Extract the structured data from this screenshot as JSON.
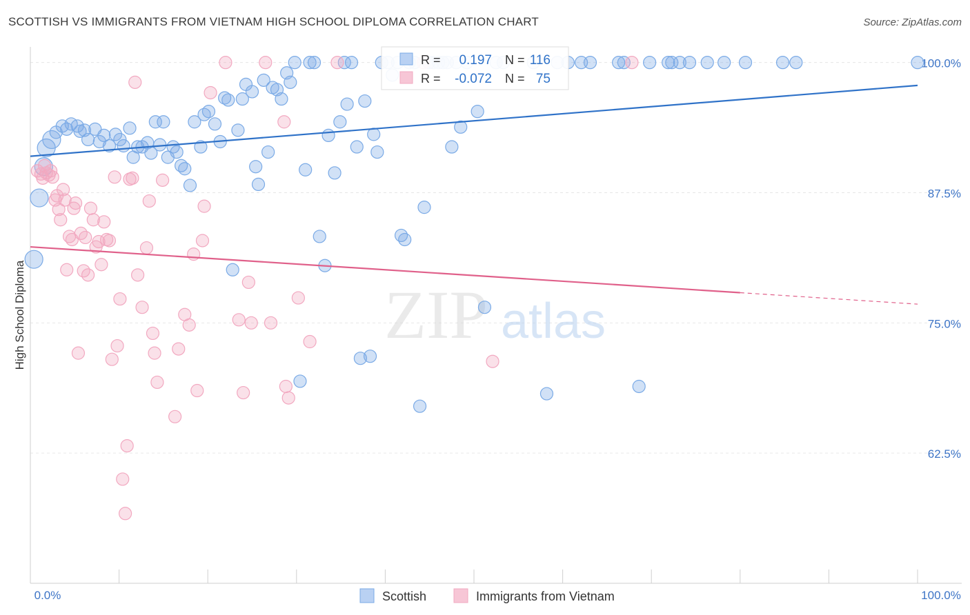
{
  "title": "SCOTTISH VS IMMIGRANTS FROM VIETNAM HIGH SCHOOL DIPLOMA CORRELATION CHART",
  "source": "Source: ZipAtlas.com",
  "watermark": {
    "zip": "ZIP",
    "atlas": "atlas"
  },
  "chart_data": {
    "type": "scatter",
    "xlabel": "",
    "ylabel": "High School Diploma",
    "xlim": [
      0,
      100
    ],
    "ylim": [
      50,
      101.5
    ],
    "x_ticks": [
      {
        "value": 0,
        "label": "0.0%"
      },
      {
        "value": 100,
        "label": "100.0%"
      }
    ],
    "y_ticks": [
      {
        "value": 100,
        "label": "100.0%"
      },
      {
        "value": 87.5,
        "label": "87.5%"
      },
      {
        "value": 75,
        "label": "75.0%"
      },
      {
        "value": 62.5,
        "label": "62.5%"
      }
    ],
    "grid": true,
    "legend_position": "bottom-center",
    "stats": [
      {
        "r_label": "R =",
        "r_value": "0.197",
        "n_label": "N =",
        "n_value": "116"
      },
      {
        "r_label": "R =",
        "r_value": "-0.072",
        "n_label": "N =",
        "n_value": "75"
      }
    ],
    "series": [
      {
        "name": "Scottish",
        "color": "#7aaae6",
        "line_color": "#2f72c8",
        "trend": {
          "x0": 0,
          "y0": 91.0,
          "x1": 100,
          "y1": 97.8,
          "solid_until": 100
        },
        "points": [
          [
            0.4,
            81.1
          ],
          [
            1.0,
            87.0
          ],
          [
            1.5,
            90.0
          ],
          [
            1.8,
            91.8
          ],
          [
            2.4,
            92.6
          ],
          [
            2.9,
            93.3
          ],
          [
            3.6,
            93.9
          ],
          [
            4.1,
            93.6
          ],
          [
            4.6,
            94.1
          ],
          [
            5.3,
            93.9
          ],
          [
            5.6,
            93.4
          ],
          [
            6.1,
            93.5
          ],
          [
            6.5,
            92.6
          ],
          [
            7.3,
            93.6
          ],
          [
            7.8,
            92.4
          ],
          [
            8.3,
            93.0
          ],
          [
            8.9,
            92.0
          ],
          [
            9.6,
            93.1
          ],
          [
            10.1,
            92.6
          ],
          [
            10.5,
            92.0
          ],
          [
            11.2,
            93.7
          ],
          [
            11.6,
            90.9
          ],
          [
            12.1,
            91.9
          ],
          [
            12.6,
            91.9
          ],
          [
            13.2,
            92.3
          ],
          [
            13.6,
            91.3
          ],
          [
            14.1,
            94.3
          ],
          [
            14.6,
            92.1
          ],
          [
            15.0,
            94.3
          ],
          [
            15.5,
            90.9
          ],
          [
            16.1,
            91.9
          ],
          [
            16.5,
            91.4
          ],
          [
            17.0,
            90.1
          ],
          [
            17.4,
            89.8
          ],
          [
            18.0,
            88.2
          ],
          [
            18.5,
            94.3
          ],
          [
            19.2,
            91.9
          ],
          [
            19.6,
            95.0
          ],
          [
            20.1,
            95.3
          ],
          [
            20.8,
            94.1
          ],
          [
            21.4,
            92.4
          ],
          [
            21.9,
            96.6
          ],
          [
            22.3,
            96.4
          ],
          [
            22.8,
            80.1
          ],
          [
            23.4,
            93.5
          ],
          [
            23.9,
            96.5
          ],
          [
            24.3,
            97.9
          ],
          [
            25.0,
            97.2
          ],
          [
            25.4,
            90.0
          ],
          [
            25.7,
            88.3
          ],
          [
            26.3,
            98.3
          ],
          [
            26.8,
            91.4
          ],
          [
            27.3,
            97.6
          ],
          [
            27.8,
            97.4
          ],
          [
            28.3,
            96.5
          ],
          [
            28.9,
            99.0
          ],
          [
            29.3,
            98.1
          ],
          [
            29.8,
            100.0
          ],
          [
            30.4,
            69.4
          ],
          [
            31.0,
            89.7
          ],
          [
            31.5,
            100.0
          ],
          [
            32.0,
            100.0
          ],
          [
            32.6,
            83.3
          ],
          [
            33.2,
            80.5
          ],
          [
            33.6,
            93.0
          ],
          [
            34.3,
            89.4
          ],
          [
            34.9,
            94.3
          ],
          [
            35.4,
            100.0
          ],
          [
            35.7,
            96.0
          ],
          [
            36.2,
            100.0
          ],
          [
            36.8,
            91.9
          ],
          [
            37.2,
            71.6
          ],
          [
            37.7,
            96.3
          ],
          [
            38.3,
            71.8
          ],
          [
            38.7,
            93.1
          ],
          [
            39.1,
            91.4
          ],
          [
            39.6,
            100.0
          ],
          [
            40.3,
            100.0
          ],
          [
            40.8,
            98.8
          ],
          [
            41.4,
            100.0
          ],
          [
            41.8,
            83.4
          ],
          [
            42.2,
            83.0
          ],
          [
            42.7,
            100.0
          ],
          [
            43.3,
            100.0
          ],
          [
            43.9,
            67.0
          ],
          [
            44.4,
            86.1
          ],
          [
            44.9,
            100.0
          ],
          [
            45.4,
            100.0
          ],
          [
            46.0,
            100.0
          ],
          [
            46.5,
            100.0
          ],
          [
            47.0,
            100.0
          ],
          [
            47.5,
            91.9
          ],
          [
            48.0,
            100.0
          ],
          [
            48.5,
            93.8
          ],
          [
            49.2,
            100.0
          ],
          [
            50.4,
            95.3
          ],
          [
            51.2,
            76.5
          ],
          [
            52.5,
            100.0
          ],
          [
            53.3,
            100.0
          ],
          [
            56.7,
            100.0
          ],
          [
            58.2,
            68.2
          ],
          [
            59.4,
            100.0
          ],
          [
            60.6,
            100.0
          ],
          [
            62.1,
            100.0
          ],
          [
            63.1,
            100.0
          ],
          [
            66.3,
            100.0
          ],
          [
            66.9,
            100.0
          ],
          [
            68.6,
            68.9
          ],
          [
            69.8,
            100.0
          ],
          [
            71.9,
            100.0
          ],
          [
            72.3,
            100.0
          ],
          [
            73.2,
            100.0
          ],
          [
            74.3,
            100.0
          ],
          [
            76.3,
            100.0
          ],
          [
            78.2,
            100.0
          ],
          [
            80.6,
            100.0
          ],
          [
            84.8,
            100.0
          ],
          [
            86.3,
            100.0
          ],
          [
            100.0,
            100.0
          ]
        ]
      },
      {
        "name": "Immigrants from Vietnam",
        "color": "#f2a8c0",
        "line_color": "#e0608a",
        "trend": {
          "x0": 0,
          "y0": 82.3,
          "x1": 100,
          "y1": 76.8,
          "solid_until": 80
        },
        "points": [
          [
            0.8,
            89.6
          ],
          [
            1.2,
            89.3
          ],
          [
            1.4,
            88.9
          ],
          [
            1.6,
            90.1
          ],
          [
            1.8,
            89.4
          ],
          [
            2.1,
            89.2
          ],
          [
            2.3,
            89.6
          ],
          [
            2.5,
            89.0
          ],
          [
            2.8,
            86.8
          ],
          [
            3.0,
            87.2
          ],
          [
            3.2,
            85.9
          ],
          [
            3.4,
            84.9
          ],
          [
            3.7,
            87.8
          ],
          [
            3.9,
            86.8
          ],
          [
            4.1,
            80.1
          ],
          [
            4.4,
            83.3
          ],
          [
            4.7,
            83.0
          ],
          [
            4.9,
            86.0
          ],
          [
            5.1,
            86.5
          ],
          [
            5.4,
            72.1
          ],
          [
            5.7,
            83.6
          ],
          [
            6.0,
            80.0
          ],
          [
            6.2,
            83.2
          ],
          [
            6.5,
            79.6
          ],
          [
            6.8,
            86.0
          ],
          [
            7.1,
            84.9
          ],
          [
            7.4,
            82.3
          ],
          [
            7.7,
            82.8
          ],
          [
            8.0,
            80.6
          ],
          [
            8.3,
            84.7
          ],
          [
            8.6,
            83.0
          ],
          [
            8.9,
            82.9
          ],
          [
            9.2,
            71.5
          ],
          [
            9.5,
            89.0
          ],
          [
            9.8,
            72.8
          ],
          [
            10.1,
            77.3
          ],
          [
            10.4,
            60.0
          ],
          [
            10.7,
            56.7
          ],
          [
            10.9,
            63.2
          ],
          [
            11.2,
            88.8
          ],
          [
            11.5,
            88.9
          ],
          [
            11.8,
            98.1
          ],
          [
            12.1,
            79.6
          ],
          [
            12.6,
            76.5
          ],
          [
            13.1,
            82.2
          ],
          [
            13.4,
            86.7
          ],
          [
            13.8,
            74.0
          ],
          [
            14.0,
            72.1
          ],
          [
            14.3,
            69.3
          ],
          [
            14.9,
            88.7
          ],
          [
            16.3,
            66.0
          ],
          [
            16.7,
            72.5
          ],
          [
            17.4,
            75.8
          ],
          [
            17.9,
            74.8
          ],
          [
            18.4,
            81.6
          ],
          [
            18.8,
            68.5
          ],
          [
            19.4,
            82.9
          ],
          [
            19.6,
            86.2
          ],
          [
            20.3,
            97.1
          ],
          [
            22.0,
            100.0
          ],
          [
            23.5,
            75.3
          ],
          [
            24.0,
            68.3
          ],
          [
            24.6,
            78.9
          ],
          [
            24.9,
            75.0
          ],
          [
            26.5,
            100.0
          ],
          [
            27.1,
            75.0
          ],
          [
            28.6,
            94.3
          ],
          [
            28.8,
            68.9
          ],
          [
            29.1,
            67.8
          ],
          [
            30.2,
            77.4
          ],
          [
            31.5,
            73.2
          ],
          [
            34.6,
            100.0
          ],
          [
            44.3,
            100.0
          ],
          [
            52.1,
            71.3
          ],
          [
            67.8,
            100.0
          ]
        ]
      }
    ]
  }
}
